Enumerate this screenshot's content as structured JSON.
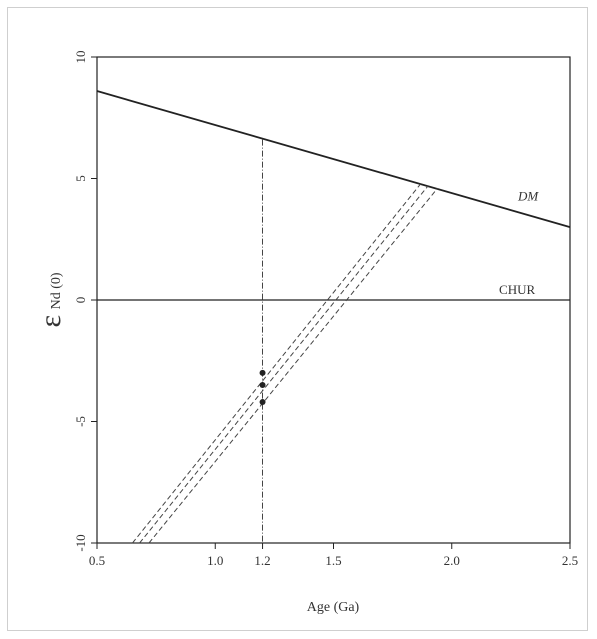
{
  "chart_data": {
    "type": "line",
    "xlabel": "Age (Ga)",
    "ylabel_symbol": "ε",
    "ylabel_sub": "Nd (0)",
    "xlim": [
      0.5,
      2.5
    ],
    "ylim": [
      -10,
      10
    ],
    "x_ticks": [
      {
        "v": 0.5,
        "label": "0.5"
      },
      {
        "v": 1.0,
        "label": "1.0"
      },
      {
        "v": 1.2,
        "label": "1.2"
      },
      {
        "v": 1.5,
        "label": "1.5"
      },
      {
        "v": 2.0,
        "label": "2.0"
      },
      {
        "v": 2.5,
        "label": "2.5"
      }
    ],
    "y_ticks": [
      {
        "v": 10,
        "label": "10"
      },
      {
        "v": 5,
        "label": "5"
      },
      {
        "v": 0,
        "label": "0"
      },
      {
        "v": -5,
        "label": "-5"
      },
      {
        "v": -10,
        "label": "-10"
      }
    ],
    "series": [
      {
        "name": "DM",
        "style": "solid",
        "points": [
          [
            0.5,
            8.6
          ],
          [
            2.5,
            3.0
          ]
        ]
      },
      {
        "name": "CHUR",
        "style": "solid",
        "points": [
          [
            0.5,
            0
          ],
          [
            2.5,
            0
          ]
        ]
      },
      {
        "style": "dashdot",
        "points": [
          [
            1.2,
            6.6
          ],
          [
            1.2,
            -10
          ]
        ]
      },
      {
        "style": "dashed",
        "points": [
          [
            0.65,
            -10
          ],
          [
            1.87,
            4.8
          ]
        ]
      },
      {
        "style": "dashed",
        "points": [
          [
            0.68,
            -10
          ],
          [
            1.9,
            4.7
          ]
        ]
      },
      {
        "style": "dashed",
        "points": [
          [
            0.72,
            -10
          ],
          [
            1.94,
            4.6
          ]
        ]
      }
    ],
    "points": [
      {
        "x": 1.2,
        "y": -3.0
      },
      {
        "x": 1.2,
        "y": -3.5
      },
      {
        "x": 1.2,
        "y": -4.2
      }
    ],
    "line_labels": [
      {
        "text": "DM",
        "x": 2.28,
        "y": 4.1,
        "italic": true
      },
      {
        "text": "CHUR",
        "x": 2.2,
        "y": 0.25,
        "italic": false
      }
    ]
  }
}
